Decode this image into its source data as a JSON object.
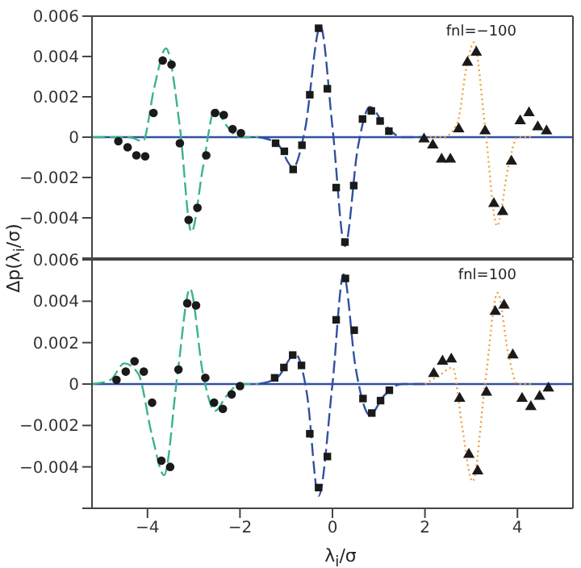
{
  "chart_data": [
    {
      "type": "scatter",
      "ylabel": "Δp(λ$_{i}$/σ)",
      "annotations": [
        "fnl=−100"
      ],
      "xlim": [
        -5.2,
        5.2
      ],
      "xticks": [
        -4,
        -2,
        0,
        2,
        4
      ],
      "ylim": [
        -0.006,
        0.006
      ],
      "yticks": [
        {
          "value": -0.006,
          "label": null
        },
        -0.004,
        -0.002,
        0,
        0.002,
        0.004,
        0.006
      ],
      "tick_labels": "y",
      "ref_lines": [
        {
          "axis": "y",
          "value": 0,
          "color": "#3050a0"
        }
      ],
      "series": [
        {
          "type": "scatter",
          "marker": "circle",
          "color": "#1a1a1a",
          "x": [
            -4.63,
            -4.43,
            -4.24,
            -4.05,
            -3.87,
            -3.67,
            -3.48,
            -3.3,
            -3.11,
            -2.92,
            -2.73,
            -2.54,
            -2.35,
            -2.16,
            -1.98
          ],
          "values": [
            -0.0002,
            -0.0005,
            -0.0009,
            -0.00095,
            0.0012,
            0.0038,
            0.0036,
            -0.0003,
            -0.0041,
            -0.0035,
            -0.0009,
            0.0012,
            0.0011,
            0.0004,
            0.0002
          ]
        },
        {
          "type": "scatter",
          "marker": "square",
          "color": "#1a1a1a",
          "x": [
            -1.23,
            -1.04,
            -0.85,
            -0.66,
            -0.49,
            -0.3,
            -0.11,
            0.08,
            0.27,
            0.46,
            0.65,
            0.84,
            1.03,
            1.22
          ],
          "values": [
            -0.0003,
            -0.0007,
            -0.0016,
            -0.0004,
            0.0021,
            0.0054,
            0.0024,
            -0.0025,
            -0.0052,
            -0.0024,
            0.0009,
            0.0013,
            0.0008,
            0.0003
          ]
        },
        {
          "type": "scatter",
          "marker": "triangle",
          "color": "#1a1a1a",
          "x": [
            1.98,
            2.17,
            2.36,
            2.55,
            2.73,
            2.92,
            3.11,
            3.3,
            3.49,
            3.68,
            3.87,
            4.06,
            4.25,
            4.44,
            4.63
          ],
          "values": [
            -0.0001,
            -0.0004,
            -0.0011,
            -0.0011,
            0.0004,
            0.0037,
            0.0042,
            0.0003,
            -0.0033,
            -0.0037,
            -0.0012,
            0.0008,
            0.0012,
            0.0005,
            0.0003
          ]
        },
        {
          "type": "line",
          "line_style": "dashed",
          "marker": "none",
          "color": "#3cb38a",
          "x": [
            -5.2,
            -4.4,
            -4.1,
            -3.85,
            -3.6,
            -3.3,
            -3.05,
            -2.8,
            -2.54,
            -2.3,
            -2.0,
            -1.6
          ],
          "values": [
            0,
            0,
            -0.0002,
            0.0025,
            0.0044,
            0.0005,
            -0.0047,
            -0.0015,
            0.0014,
            0.0006,
            0,
            0
          ]
        },
        {
          "type": "line",
          "line_style": "dashed",
          "marker": "none",
          "color": "#3050a0",
          "x": [
            -1.6,
            -1.2,
            -0.85,
            -0.6,
            -0.26,
            0,
            0.27,
            0.55,
            0.81,
            1.1,
            1.5,
            2.0
          ],
          "values": [
            0,
            -0.0003,
            -0.0015,
            0.0003,
            0.0055,
            0.0005,
            -0.0054,
            -0.0005,
            0.0015,
            0.0007,
            0,
            0
          ]
        },
        {
          "type": "line",
          "line_style": "dotted",
          "marker": "none",
          "color": "#f0a040",
          "x": [
            2.0,
            2.4,
            2.7,
            2.9,
            3.06,
            3.3,
            3.56,
            3.8,
            4.0,
            4.3
          ],
          "values": [
            0,
            0,
            0.0007,
            0.0035,
            0.0047,
            0.0005,
            -0.0044,
            -0.0015,
            0,
            0
          ]
        }
      ]
    },
    {
      "type": "scatter",
      "xlabel": "λ$_{i}$/σ",
      "annotations": [
        "fnl=100"
      ],
      "xlim": [
        -5.2,
        5.2
      ],
      "xticks": [
        -4,
        -2,
        0,
        2,
        4
      ],
      "ylim": [
        -0.006,
        0.006
      ],
      "yticks": [
        {
          "value": -0.006,
          "label": null
        },
        -0.004,
        -0.002,
        0,
        0.002,
        0.004,
        0.006
      ],
      "ref_lines": [
        {
          "axis": "y",
          "value": 0,
          "color": "#3050a0"
        }
      ],
      "series": [
        {
          "type": "scatter",
          "marker": "circle",
          "color": "#1a1a1a",
          "x": [
            -4.67,
            -4.47,
            -4.28,
            -4.08,
            -3.9,
            -3.7,
            -3.51,
            -3.33,
            -3.14,
            -2.95,
            -2.75,
            -2.56,
            -2.37,
            -2.18,
            -2.0
          ],
          "values": [
            0.0002,
            0.0006,
            0.0011,
            0.0006,
            -0.0009,
            -0.0037,
            -0.004,
            0.0007,
            0.0039,
            0.0038,
            0.0003,
            -0.0009,
            -0.0012,
            -0.0005,
            -0.0001
          ]
        },
        {
          "type": "scatter",
          "marker": "square",
          "color": "#1a1a1a",
          "x": [
            -1.25,
            -1.05,
            -0.86,
            -0.67,
            -0.49,
            -0.3,
            -0.11,
            0.08,
            0.28,
            0.47,
            0.66,
            0.85,
            1.04,
            1.23
          ],
          "values": [
            0.0003,
            0.0008,
            0.0014,
            0.0009,
            -0.0024,
            -0.005,
            -0.0035,
            0.0031,
            0.0051,
            0.0026,
            -0.0007,
            -0.0014,
            -0.0008,
            -0.0003
          ]
        },
        {
          "type": "scatter",
          "marker": "triangle",
          "color": "#1a1a1a",
          "x": [
            2.19,
            2.38,
            2.57,
            2.75,
            2.95,
            3.14,
            3.33,
            3.52,
            3.71,
            3.9,
            4.1,
            4.29,
            4.48,
            4.67
          ],
          "values": [
            0.0005,
            0.0011,
            0.0012,
            -0.0007,
            -0.0034,
            -0.0042,
            -0.0004,
            0.0035,
            0.0038,
            0.0014,
            -0.0007,
            -0.0011,
            -0.0006,
            -0.0002
          ]
        },
        {
          "type": "line",
          "line_style": "dashed",
          "marker": "none",
          "color": "#3cb38a",
          "x": [
            -5.2,
            -4.8,
            -4.5,
            -4.2,
            -3.9,
            -3.64,
            -3.35,
            -3.08,
            -2.8,
            -2.54,
            -2.3,
            -2.0,
            -1.6
          ],
          "values": [
            0,
            0.0002,
            0.001,
            0.0005,
            -0.0025,
            -0.0044,
            0.0005,
            0.0046,
            0.0005,
            -0.0013,
            -0.0006,
            0,
            0
          ]
        },
        {
          "type": "line",
          "line_style": "dashed",
          "marker": "none",
          "color": "#3050a0",
          "x": [
            -1.6,
            -1.2,
            -0.8,
            -0.55,
            -0.3,
            0,
            0.24,
            0.5,
            0.81,
            1.1,
            1.5,
            2.0
          ],
          "values": [
            0,
            0.0003,
            0.00145,
            -0.0005,
            -0.0054,
            0,
            0.0053,
            0.0008,
            -0.0015,
            -0.0006,
            0,
            0
          ]
        },
        {
          "type": "line",
          "line_style": "dotted",
          "marker": "none",
          "color": "#f0a040",
          "x": [
            2.0,
            2.3,
            2.6,
            2.8,
            3.03,
            3.3,
            3.57,
            3.8,
            4.0,
            4.3
          ],
          "values": [
            0,
            0.0004,
            0.0008,
            -0.002,
            -0.0047,
            0,
            0.0044,
            0.0015,
            0,
            0
          ]
        }
      ]
    }
  ]
}
